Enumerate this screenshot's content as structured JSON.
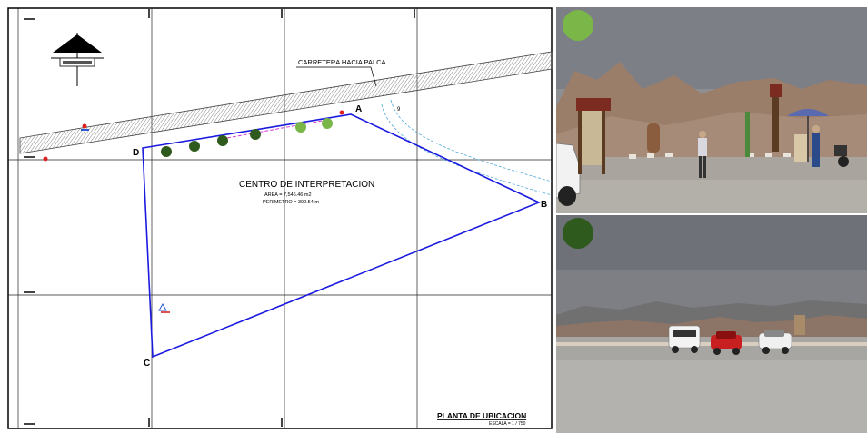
{
  "plan": {
    "road_label": "CARRETERA HACIA PALCA",
    "vertices": {
      "a": "A",
      "b": "B",
      "c": "C",
      "d": "D"
    },
    "site_title": "CENTRO DE INTERPRETACION",
    "area": "AREA = 7,546.46 m2",
    "perimeter": "PERIMETRO = 392.54 m",
    "sheet_title": "PLANTA DE UBICACION",
    "scale": "ESCALA = 1 / 750",
    "point_number": "9",
    "markers": {
      "dark_green": "#2f5a1e",
      "light_green": "#7ab648"
    },
    "colors": {
      "boundary": "#1a1adf",
      "road_outline": "#444444",
      "water_line": "#4fa8d8",
      "grid": "#222222"
    }
  },
  "photos": {
    "top_marker_color": "#7ab648",
    "bottom_marker_color": "#2f5a1e"
  }
}
